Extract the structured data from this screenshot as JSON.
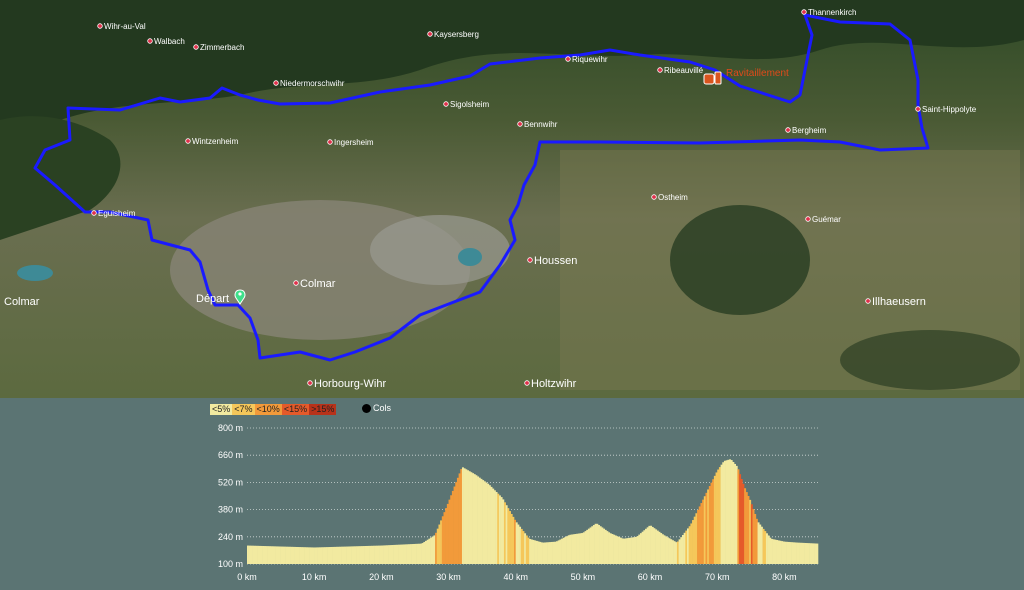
{
  "map": {
    "places": [
      {
        "name": "Wihr-au-Val",
        "style": "small"
      },
      {
        "name": "Walbach",
        "style": "small"
      },
      {
        "name": "Zimmerbach",
        "style": "small"
      },
      {
        "name": "Kaysersberg",
        "style": "small"
      },
      {
        "name": "Niedermorschwihr",
        "style": "small"
      },
      {
        "name": "Riquewihr",
        "style": "small"
      },
      {
        "name": "Ribeauvillé",
        "style": "small"
      },
      {
        "name": "Thannenkirch",
        "style": "small"
      },
      {
        "name": "Sigolsheim",
        "style": "small"
      },
      {
        "name": "Saint-Hippolyte",
        "style": "small"
      },
      {
        "name": "Bennwihr",
        "style": "small"
      },
      {
        "name": "Bergheim",
        "style": "small"
      },
      {
        "name": "Wintzenheim",
        "style": "small"
      },
      {
        "name": "Ingersheim",
        "style": "small"
      },
      {
        "name": "Ostheim",
        "style": "small"
      },
      {
        "name": "Eguisheim",
        "style": "small"
      },
      {
        "name": "Guémar",
        "style": "small"
      },
      {
        "name": "Houssen",
        "style": "large"
      },
      {
        "name": "Colmar",
        "style": "large"
      },
      {
        "name": "Colmar",
        "style": "large"
      },
      {
        "name": "Départ",
        "style": "large"
      },
      {
        "name": "Illhaeusern",
        "style": "large"
      },
      {
        "name": "Horbourg-Wihr",
        "style": "large"
      },
      {
        "name": "Holtzwihr",
        "style": "large"
      }
    ],
    "refuel_label": "Ravitaillement",
    "route_color": "#1a1aff"
  },
  "profile": {
    "legend": [
      {
        "label": "<5%",
        "color": "#f2eaa0"
      },
      {
        "label": "<7%",
        "color": "#f5c75a"
      },
      {
        "label": "<10%",
        "color": "#f29a3a"
      },
      {
        "label": "<15%",
        "color": "#e55a2a"
      },
      {
        "label": ">15%",
        "color": "#b8321a"
      }
    ],
    "cols_label": "Cols",
    "y_ticks": [
      "800 m",
      "660 m",
      "520 m",
      "380 m",
      "240 m",
      "100 m"
    ],
    "x_ticks": [
      "0 km",
      "10 km",
      "20 km",
      "30 km",
      "40 km",
      "50 km",
      "60 km",
      "70 km",
      "80 km"
    ]
  },
  "chart_data": {
    "type": "area",
    "xlabel": "",
    "ylabel": "",
    "xlim": [
      0,
      85
    ],
    "ylim": [
      100,
      800
    ],
    "series": [
      {
        "x": [
          0,
          5,
          10,
          15,
          20,
          23,
          26,
          28,
          30,
          32,
          34,
          36,
          38,
          40,
          42,
          44,
          46,
          48,
          50,
          52,
          54,
          56,
          58,
          60,
          62,
          64,
          66,
          68,
          70,
          71,
          72,
          73,
          74,
          75,
          76,
          78,
          80,
          82,
          85
        ],
        "y": [
          195,
          190,
          185,
          190,
          195,
          200,
          205,
          250,
          420,
          600,
          560,
          510,
          440,
          320,
          230,
          210,
          215,
          250,
          260,
          310,
          260,
          230,
          240,
          300,
          250,
          210,
          300,
          440,
          580,
          630,
          640,
          600,
          500,
          420,
          320,
          230,
          215,
          210,
          205
        ]
      }
    ]
  }
}
